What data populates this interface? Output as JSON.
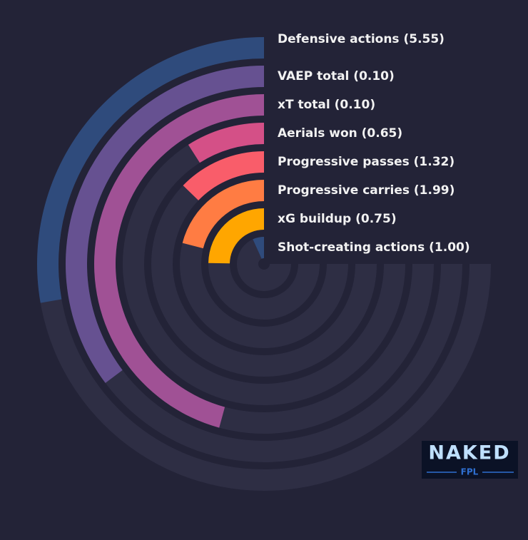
{
  "chart_data": {
    "type": "radial-bar",
    "categories": [
      "Defensive actions (5.55)",
      "VAEP total (0.10)",
      "xT total (0.10)",
      "Aerials won (0.65)",
      "Progressive passes (1.32)",
      "Progressive carries (1.99)",
      "xG buildup (0.75)",
      "Shot-creating actions (1.00)"
    ],
    "values": [
      37,
      47,
      61,
      12,
      17,
      28,
      33,
      9
    ],
    "colors": [
      "#2f4b7c",
      "#665191",
      "#a05195",
      "#d45087",
      "#f95d6a",
      "#ff7c43",
      "#ffa600",
      "#2f4b7c"
    ],
    "ylim": [
      0,
      100
    ]
  },
  "logo": {
    "title": "NAKED",
    "subtitle": "FPL"
  }
}
